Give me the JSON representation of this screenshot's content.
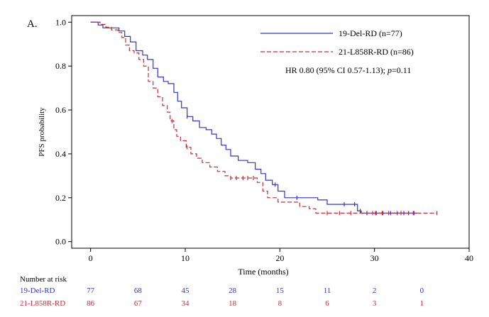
{
  "panel_label": "A.",
  "chart_data": {
    "type": "line",
    "subtype": "kaplan-meier step curves with censor marks",
    "xlabel": "Time (months)",
    "ylabel": "PFS probability",
    "xlim": [
      -2,
      40
    ],
    "ylim": [
      -0.03,
      1.03
    ],
    "x_ticks": [
      0,
      10,
      20,
      30,
      40
    ],
    "y_ticks": [
      0.0,
      0.2,
      0.4,
      0.6,
      0.8,
      1.0
    ],
    "x_tick_labels": [
      "0",
      "10",
      "20",
      "30",
      "40"
    ],
    "y_tick_labels": [
      "0.0",
      "0.2",
      "0.4",
      "0.6",
      "0.8",
      "1.0"
    ],
    "grid": false,
    "legend_placement": "top-right",
    "annotation_prefix": "HR 0.80 (95% CI 0.57-1.13);  ",
    "annotation_p_label": "p",
    "annotation_p_value": "=0.11",
    "series": [
      {
        "name": "19-Del-RD (n=77)",
        "color": "#3535c8",
        "dash": "solid",
        "points": [
          [
            0,
            1.0
          ],
          [
            0.8,
            0.987
          ],
          [
            1.3,
            0.974
          ],
          [
            3,
            0.96
          ],
          [
            3.6,
            0.935
          ],
          [
            4.2,
            0.91
          ],
          [
            4.8,
            0.87
          ],
          [
            5.5,
            0.85
          ],
          [
            6,
            0.83
          ],
          [
            6.6,
            0.79
          ],
          [
            7.1,
            0.75
          ],
          [
            7.7,
            0.73
          ],
          [
            8.2,
            0.72
          ],
          [
            8.8,
            0.68
          ],
          [
            9.2,
            0.64
          ],
          [
            9.6,
            0.61
          ],
          [
            10.2,
            0.57
          ],
          [
            10.8,
            0.55
          ],
          [
            11.5,
            0.52
          ],
          [
            12.2,
            0.51
          ],
          [
            12.8,
            0.49
          ],
          [
            13.3,
            0.47
          ],
          [
            13.8,
            0.44
          ],
          [
            14.3,
            0.42
          ],
          [
            14.8,
            0.39
          ],
          [
            15.6,
            0.37
          ],
          [
            16.6,
            0.36
          ],
          [
            17.4,
            0.33
          ],
          [
            18,
            0.31
          ],
          [
            18.5,
            0.28
          ],
          [
            19.2,
            0.26
          ],
          [
            19.8,
            0.23
          ],
          [
            20.5,
            0.2
          ],
          [
            24,
            0.19
          ],
          [
            25,
            0.17
          ],
          [
            28.2,
            0.14
          ],
          [
            28.6,
            0.13
          ],
          [
            34.5,
            0.13
          ]
        ],
        "censor_x": [
          10.2,
          19.5,
          21.8,
          26.8,
          27.9,
          28.5,
          29.2,
          30.1,
          30.9,
          31.7,
          32.4,
          33.1,
          33.6,
          34.1
        ]
      },
      {
        "name": "21-L858R-RD (n=86)",
        "color": "#c0303a",
        "dash": "dashed",
        "points": [
          [
            0,
            1.0
          ],
          [
            1,
            0.99
          ],
          [
            1.6,
            0.977
          ],
          [
            2.2,
            0.965
          ],
          [
            2.9,
            0.953
          ],
          [
            3.3,
            0.93
          ],
          [
            3.7,
            0.896
          ],
          [
            4.1,
            0.87
          ],
          [
            4.6,
            0.86
          ],
          [
            5.1,
            0.83
          ],
          [
            5.6,
            0.8
          ],
          [
            6.1,
            0.73
          ],
          [
            6.6,
            0.7
          ],
          [
            7.1,
            0.66
          ],
          [
            7.6,
            0.62
          ],
          [
            8.1,
            0.59
          ],
          [
            8.4,
            0.55
          ],
          [
            8.8,
            0.51
          ],
          [
            9.1,
            0.48
          ],
          [
            9.5,
            0.46
          ],
          [
            10.1,
            0.43
          ],
          [
            10.6,
            0.4
          ],
          [
            11.2,
            0.38
          ],
          [
            11.8,
            0.36
          ],
          [
            12.6,
            0.34
          ],
          [
            13.4,
            0.32
          ],
          [
            14.2,
            0.3
          ],
          [
            14.8,
            0.29
          ],
          [
            17.6,
            0.27
          ],
          [
            18.2,
            0.23
          ],
          [
            18.7,
            0.2
          ],
          [
            19.8,
            0.18
          ],
          [
            22.1,
            0.16
          ],
          [
            23.1,
            0.15
          ],
          [
            23.8,
            0.13
          ],
          [
            36.6,
            0.13
          ]
        ],
        "censor_x": [
          8.6,
          10.2,
          14.8,
          15.4,
          16.1,
          16.6,
          17.2,
          25.0,
          26.3,
          27.5,
          29.8,
          30.2,
          30.8,
          31.5,
          32.8,
          34.2,
          36.6
        ]
      }
    ],
    "risk_table": {
      "title": "Number at risk",
      "times": [
        0,
        5,
        10,
        15,
        20,
        25,
        30,
        35
      ],
      "rows": [
        {
          "label": "19-Del-RD",
          "color": "#3535c8",
          "values": [
            "77",
            "68",
            "45",
            "28",
            "15",
            "11",
            "2",
            "0"
          ]
        },
        {
          "label": "21-L858R-RD",
          "color": "#c0303a",
          "values": [
            "86",
            "67",
            "34",
            "18",
            "8",
            "6",
            "3",
            "1"
          ]
        }
      ]
    }
  }
}
